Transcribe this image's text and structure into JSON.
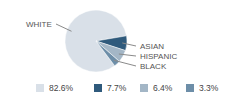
{
  "chart_data": {
    "type": "pie",
    "categories": [
      "WHITE",
      "ASIAN",
      "HISPANIC",
      "BLACK"
    ],
    "values": [
      82.6,
      7.7,
      6.4,
      3.3
    ],
    "value_labels": [
      "82.6%",
      "7.7%",
      "6.4%",
      "3.3%"
    ],
    "colors": [
      "#d9e0e8",
      "#2f5a7c",
      "#a3b6c6",
      "#6d8ea8"
    ],
    "legend": "bottom"
  }
}
